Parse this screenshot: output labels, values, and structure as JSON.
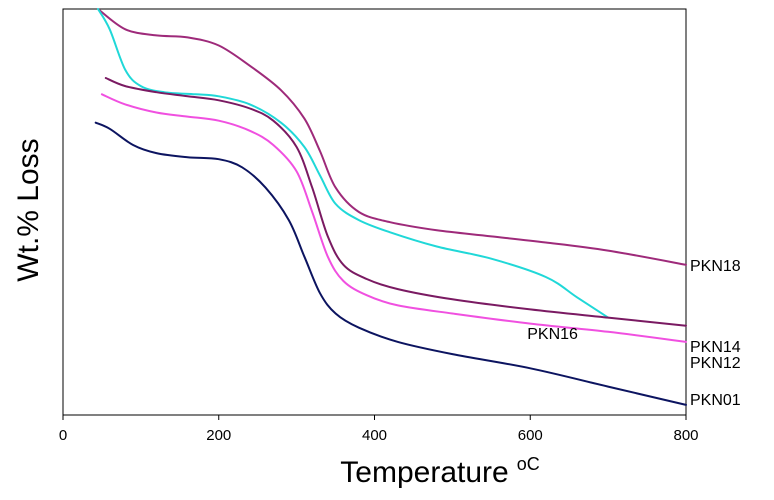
{
  "chart_data": {
    "type": "line",
    "title": "",
    "xlabel": "Temperature",
    "xlabel_unit": "oC",
    "ylabel": "Wt.% Loss",
    "xlim": [
      0,
      800
    ],
    "ylim": [
      0,
      100
    ],
    "x_ticks": [
      "0",
      "200",
      "400",
      "600",
      "800"
    ],
    "y_ticks": [],
    "grid": false,
    "legend": "none",
    "series": [
      {
        "name": "PKN18",
        "color": "#9e2a7a",
        "label_at": [
          800,
          37
        ],
        "x": [
          45,
          80,
          120,
          160,
          200,
          240,
          280,
          310,
          330,
          350,
          380,
          420,
          480,
          550,
          620,
          700,
          800
        ],
        "y": [
          100,
          95,
          93.5,
          93,
          91,
          86,
          80,
          73,
          65,
          56,
          50,
          47.5,
          45.5,
          44,
          42.5,
          40.5,
          37
        ]
      },
      {
        "name": "PKN16",
        "color": "#20d8d8",
        "label_at": [
          600,
          20
        ],
        "x": [
          45,
          60,
          80,
          100,
          130,
          170,
          200,
          240,
          280,
          310,
          330,
          350,
          380,
          420,
          480,
          550,
          620,
          660,
          700
        ],
        "y": [
          100,
          95,
          85,
          81,
          79.5,
          79,
          78.5,
          76.5,
          72,
          66,
          59,
          52,
          48,
          45,
          41.5,
          38.5,
          34,
          29,
          24
        ]
      },
      {
        "name": "PKN14",
        "color": "#7a1a62",
        "label_at": [
          800,
          17
        ],
        "x": [
          55,
          80,
          120,
          160,
          200,
          240,
          270,
          300,
          320,
          340,
          360,
          390,
          430,
          500,
          600,
          700,
          800
        ],
        "y": [
          83,
          81,
          79.5,
          78.5,
          77.5,
          75.5,
          72.5,
          66,
          56,
          44,
          37,
          33.5,
          31,
          28.5,
          26,
          24,
          22
        ]
      },
      {
        "name": "PKN12",
        "color": "#f050e0",
        "label_at": [
          800,
          13
        ],
        "x": [
          50,
          80,
          120,
          160,
          200,
          240,
          270,
          300,
          320,
          340,
          360,
          390,
          430,
          500,
          600,
          700,
          800
        ],
        "y": [
          79,
          76.5,
          74.5,
          73.5,
          72.5,
          70,
          66.5,
          60,
          50,
          39,
          33,
          29.5,
          27,
          25,
          22.5,
          20.5,
          18
        ]
      },
      {
        "name": "PKN01",
        "color": "#0c1460",
        "label_at": [
          800,
          4
        ],
        "x": [
          42,
          60,
          90,
          120,
          160,
          200,
          230,
          260,
          290,
          310,
          330,
          350,
          380,
          430,
          500,
          600,
          700,
          800
        ],
        "y": [
          72,
          70.5,
          66.5,
          64.5,
          63.5,
          63,
          61,
          56,
          48,
          39,
          30,
          25,
          21.5,
          18,
          15,
          11.5,
          7,
          2.5
        ]
      }
    ]
  }
}
